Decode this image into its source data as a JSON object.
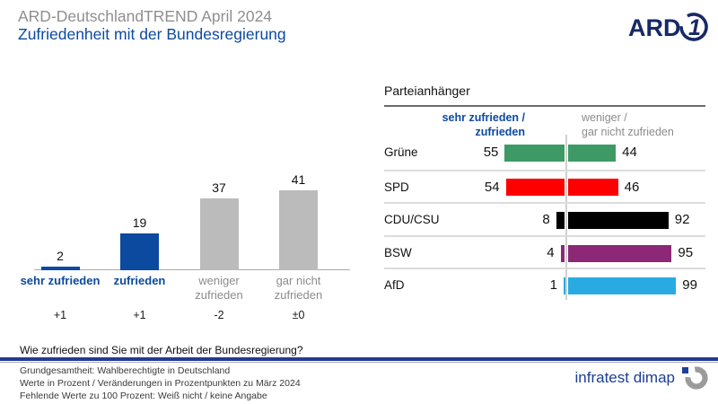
{
  "header": {
    "supertitle": "ARD-DeutschlandTREND April 2024",
    "title": "Zufriedenheit mit der Bundesregierung",
    "ard_logo_text": "ARD",
    "ard_logo_one": "1"
  },
  "colors": {
    "accent_blue": "#0C4AA0",
    "gray_bar": "#BBBBBB",
    "gray_text": "#8C8C8C",
    "ard_navy": "#172A64",
    "brand_blue": "#1C3E94"
  },
  "chart_data": [
    {
      "type": "bar",
      "title": "Zufriedenheit mit der Bundesregierung",
      "categories": [
        "sehr zufrieden",
        "zufrieden",
        "weniger zufrieden",
        "gar nicht zufrieden"
      ],
      "values": [
        2,
        19,
        37,
        41
      ],
      "changes": [
        "+1",
        "+1",
        "-2",
        "±0"
      ],
      "bar_colors": [
        "#0C4AA0",
        "#0C4AA0",
        "#BBBBBB",
        "#BBBBBB"
      ],
      "label_colors": [
        "#0C4AA0",
        "#0C4AA0",
        "#8C8C8C",
        "#8C8C8C"
      ],
      "xlabel": "",
      "ylabel": "",
      "ylim": [
        0,
        45
      ],
      "unit": "Prozent",
      "grid": false
    },
    {
      "type": "bar",
      "orientation": "horizontal-diverging",
      "title": "Parteianhänger",
      "categories": [
        "Grüne",
        "SPD",
        "CDU/CSU",
        "BSW",
        "AfD"
      ],
      "series": [
        {
          "name": "sehr zufrieden / zufrieden",
          "values": [
            55,
            54,
            8,
            4,
            1
          ]
        },
        {
          "name": "weniger / gar nicht zufrieden",
          "values": [
            44,
            46,
            92,
            95,
            99
          ]
        }
      ],
      "bar_colors": [
        "#3D9A64",
        "#FF0000",
        "#000000",
        "#8C2876",
        "#29ABE2"
      ],
      "legend_left": [
        "sehr zufrieden /",
        "zufrieden"
      ],
      "legend_right": [
        "weniger /",
        "gar nicht zufrieden"
      ],
      "legend_position": "top",
      "unit": "Prozent"
    }
  ],
  "footer": {
    "question": "Wie zufrieden sind Sie mit der Arbeit der Bundesregierung?",
    "notes": [
      "Grundgesamtheit: Wahlberechtigte in Deutschland",
      "Werte in Prozent / Veränderungen in Prozentpunkten zu März 2024",
      "Fehlende Werte zu 100 Prozent: Weiß nicht / keine Angabe"
    ],
    "brand": "infratest dimap"
  }
}
